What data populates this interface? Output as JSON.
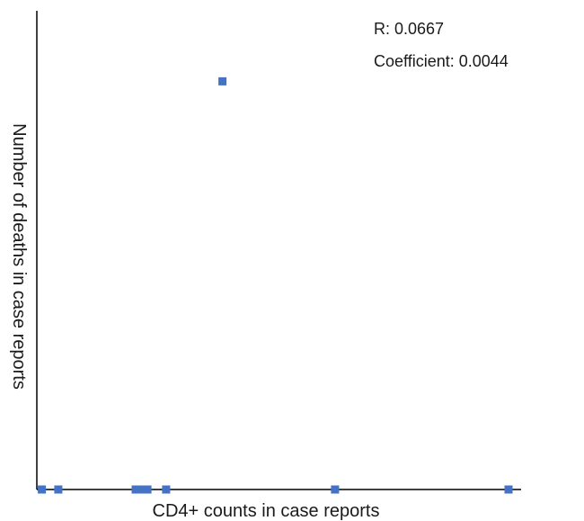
{
  "chart_data": {
    "type": "scatter",
    "title": "",
    "xlabel": "CD4+ counts in case reports",
    "ylabel": "Number of deaths in case reports",
    "annotations": [
      "R: 0.0667",
      "Coefficient: 0.0044"
    ],
    "xlim": [
      0,
      100
    ],
    "ylim": [
      0,
      100
    ],
    "grid": false,
    "legend": "none",
    "series": [
      {
        "color": "#4472C4",
        "points": [
          {
            "x": 0.5,
            "y": 0
          },
          {
            "x": 4,
            "y": 0
          },
          {
            "x": 20.5,
            "y": 0
          },
          {
            "x": 22,
            "y": 0
          },
          {
            "x": 23,
            "y": 0
          },
          {
            "x": 27,
            "y": 0
          },
          {
            "x": 39,
            "y": 84
          },
          {
            "x": 63,
            "y": 0
          },
          {
            "x": 100,
            "y": 0
          }
        ]
      }
    ]
  }
}
